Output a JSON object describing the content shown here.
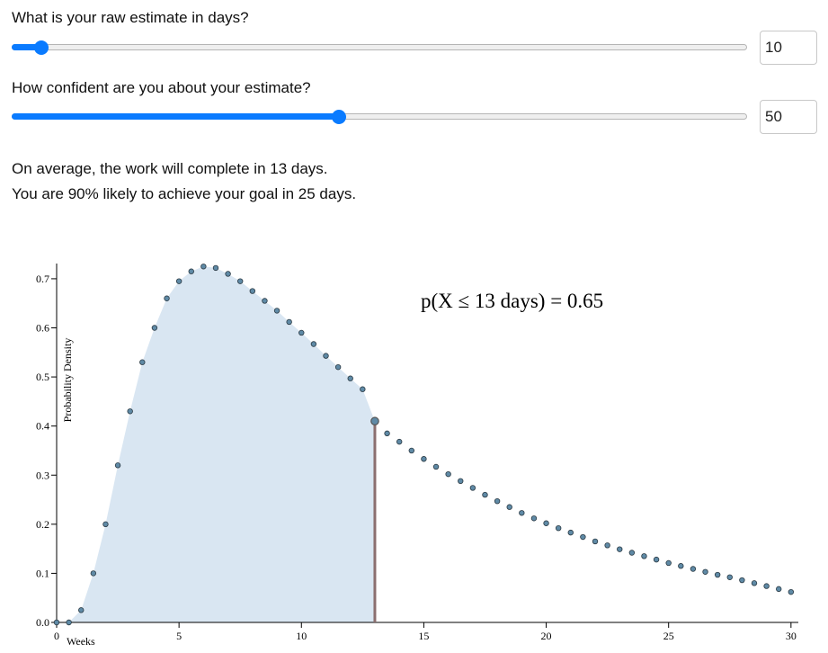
{
  "controls": {
    "estimate": {
      "question": "What is your raw estimate in days?",
      "value": "10",
      "fraction": 0.04
    },
    "confidence": {
      "question": "How confident are you about your estimate?",
      "value": "50",
      "fraction": 0.445
    }
  },
  "summary": {
    "average_line": "On average, the work will complete in 13 days.",
    "likely_line": "You are 90% likely to achieve your goal in 25 days."
  },
  "colors": {
    "accent": "#0a7bff",
    "area": "#d9e6f2",
    "marker": "#8b6f6f",
    "point": "#5f8aa6"
  },
  "chart_data": {
    "type": "area",
    "xlabel": "Weeks",
    "ylabel": "Probability Density",
    "xlim": [
      0,
      30.3
    ],
    "ylim": [
      0,
      0.72
    ],
    "xticks": [
      "0",
      "5",
      "10",
      "15",
      "20",
      "25",
      "30"
    ],
    "yticks": [
      "0.0",
      "0.1",
      "0.2",
      "0.3",
      "0.4",
      "0.5",
      "0.6",
      "0.7"
    ],
    "annotation": "p(X ≤ 13 days) = 0.65",
    "marker_x": 13,
    "marker_y": 0.41,
    "x": [
      0,
      0.5,
      1,
      1.5,
      2,
      2.5,
      3,
      3.5,
      4,
      4.5,
      5,
      5.5,
      6,
      6.5,
      7,
      7.5,
      8,
      8.5,
      9,
      9.5,
      10,
      10.5,
      11,
      11.5,
      12,
      12.5,
      13,
      13.5,
      14,
      14.5,
      15,
      15.5,
      16,
      16.5,
      17,
      17.5,
      18,
      18.5,
      19,
      19.5,
      20,
      20.5,
      21,
      21.5,
      22,
      22.5,
      23,
      23.5,
      24,
      24.5,
      25,
      25.5,
      26,
      26.5,
      27,
      27.5,
      28,
      28.5,
      29,
      29.5,
      30
    ],
    "y": [
      0.0,
      0.0,
      0.025,
      0.1,
      0.2,
      0.32,
      0.43,
      0.53,
      0.6,
      0.66,
      0.695,
      0.715,
      0.725,
      0.722,
      0.71,
      0.695,
      0.675,
      0.655,
      0.635,
      0.612,
      0.59,
      0.567,
      0.543,
      0.52,
      0.497,
      0.475,
      0.41,
      0.385,
      0.368,
      0.35,
      0.333,
      0.317,
      0.302,
      0.288,
      0.274,
      0.26,
      0.247,
      0.235,
      0.223,
      0.212,
      0.202,
      0.192,
      0.183,
      0.174,
      0.165,
      0.157,
      0.149,
      0.142,
      0.135,
      0.128,
      0.121,
      0.115,
      0.109,
      0.103,
      0.097,
      0.092,
      0.086,
      0.08,
      0.074,
      0.068,
      0.062
    ]
  }
}
